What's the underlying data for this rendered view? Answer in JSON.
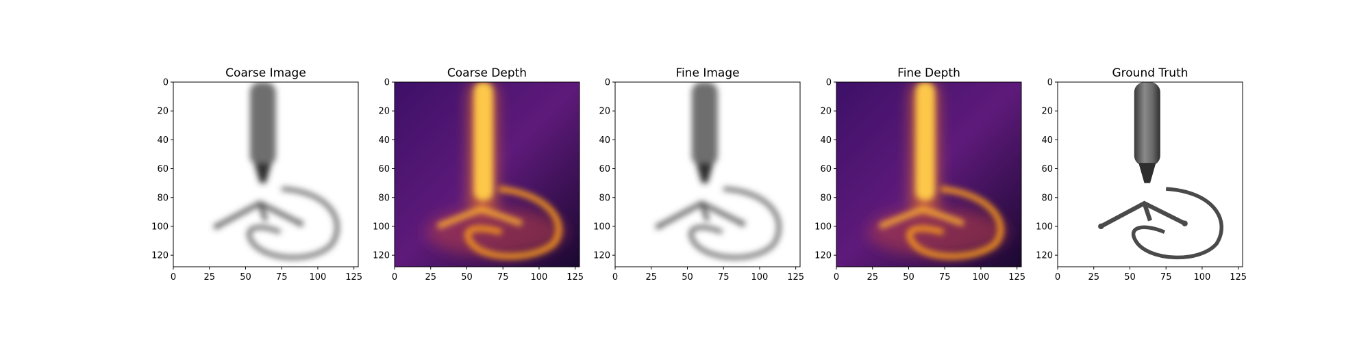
{
  "chart_data": [
    {
      "type": "image",
      "title": "Coarse Image",
      "colormap": "grayscale",
      "xlim": [
        0,
        127
      ],
      "ylim": [
        127,
        0
      ],
      "xticks": [
        0,
        25,
        50,
        75,
        100,
        125
      ],
      "yticks": [
        0,
        20,
        40,
        60,
        80,
        100,
        120
      ]
    },
    {
      "type": "heatmap",
      "title": "Coarse Depth",
      "colormap": "inferno",
      "xlim": [
        0,
        127
      ],
      "ylim": [
        127,
        0
      ],
      "xticks": [
        0,
        25,
        50,
        75,
        100,
        125
      ],
      "yticks": [
        0,
        20,
        40,
        60,
        80,
        100,
        120
      ]
    },
    {
      "type": "image",
      "title": "Fine Image",
      "colormap": "grayscale",
      "xlim": [
        0,
        127
      ],
      "ylim": [
        127,
        0
      ],
      "xticks": [
        0,
        25,
        50,
        75,
        100,
        125
      ],
      "yticks": [
        0,
        20,
        40,
        60,
        80,
        100,
        120
      ]
    },
    {
      "type": "heatmap",
      "title": "Fine Depth",
      "colormap": "inferno",
      "xlim": [
        0,
        127
      ],
      "ylim": [
        127,
        0
      ],
      "xticks": [
        0,
        25,
        50,
        75,
        100,
        125
      ],
      "yticks": [
        0,
        20,
        40,
        60,
        80,
        100,
        120
      ]
    },
    {
      "type": "image",
      "title": "Ground Truth",
      "colormap": "rgb",
      "xlim": [
        0,
        127
      ],
      "ylim": [
        127,
        0
      ],
      "xticks": [
        0,
        25,
        50,
        75,
        100,
        125
      ],
      "yticks": [
        0,
        20,
        40,
        60,
        80,
        100,
        120
      ]
    }
  ],
  "colors": {
    "background": "#ffffff",
    "axis": "#000000",
    "depth_far": "#3a0e63",
    "depth_near": "#fdc84a",
    "object_gray": "#444444"
  }
}
